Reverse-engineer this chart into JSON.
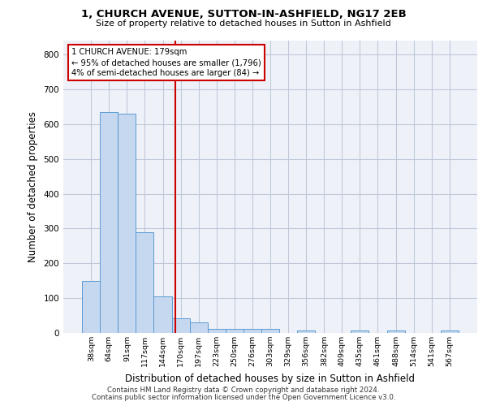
{
  "title": "1, CHURCH AVENUE, SUTTON-IN-ASHFIELD, NG17 2EB",
  "subtitle": "Size of property relative to detached houses in Sutton in Ashfield",
  "xlabel": "Distribution of detached houses by size in Sutton in Ashfield",
  "ylabel": "Number of detached properties",
  "footnote1": "Contains HM Land Registry data © Crown copyright and database right 2024.",
  "footnote2": "Contains public sector information licensed under the Open Government Licence v3.0.",
  "bar_labels": [
    "38sqm",
    "64sqm",
    "91sqm",
    "117sqm",
    "144sqm",
    "170sqm",
    "197sqm",
    "223sqm",
    "250sqm",
    "276sqm",
    "303sqm",
    "329sqm",
    "356sqm",
    "382sqm",
    "409sqm",
    "435sqm",
    "461sqm",
    "488sqm",
    "514sqm",
    "541sqm",
    "567sqm"
  ],
  "bar_values": [
    150,
    635,
    630,
    290,
    105,
    43,
    30,
    12,
    12,
    12,
    12,
    0,
    8,
    0,
    0,
    8,
    0,
    8,
    0,
    0,
    8
  ],
  "bar_color": "#c5d8f0",
  "bar_edge_color": "#5b9bd5",
  "grid_color": "#c0c8d8",
  "background_color": "#eef2f8",
  "annotation_line1": "1 CHURCH AVENUE: 179sqm",
  "annotation_line2": "← 95% of detached houses are smaller (1,796)",
  "annotation_line3": "4% of semi-detached houses are larger (84) →",
  "annotation_box_color": "#ffffff",
  "annotation_box_edge_color": "#cc0000",
  "vline_x": 4.72,
  "vline_color": "#cc0000",
  "ylim": [
    0,
    840
  ],
  "yticks": [
    0,
    100,
    200,
    300,
    400,
    500,
    600,
    700,
    800
  ]
}
